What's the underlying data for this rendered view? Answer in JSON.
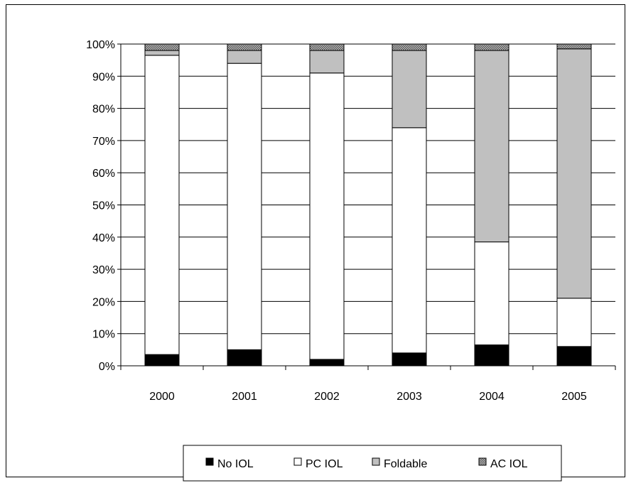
{
  "chart_data": {
    "type": "bar",
    "stacked": true,
    "percent": true,
    "categories": [
      "2000",
      "2001",
      "2002",
      "2003",
      "2004",
      "2005"
    ],
    "series": [
      {
        "name": "No IOL",
        "color": "#000000",
        "values": [
          3.5,
          5,
          2,
          4,
          6.5,
          6
        ]
      },
      {
        "name": "PC IOL",
        "color": "#ffffff",
        "values": [
          93,
          89,
          89,
          70,
          32,
          15
        ]
      },
      {
        "name": "Foldable",
        "color": "#c0c0c0",
        "values": [
          1.5,
          4,
          7,
          24,
          59.5,
          77.5
        ]
      },
      {
        "name": "AC IOL",
        "color": "#8c8c8c",
        "values": [
          2,
          2,
          2,
          2,
          2,
          1.5
        ]
      }
    ],
    "ylim": [
      0,
      100
    ],
    "yticks": [
      "0%",
      "10%",
      "20%",
      "30%",
      "40%",
      "50%",
      "60%",
      "70%",
      "80%",
      "90%",
      "100%"
    ],
    "grid": true,
    "legend_position": "bottom"
  }
}
